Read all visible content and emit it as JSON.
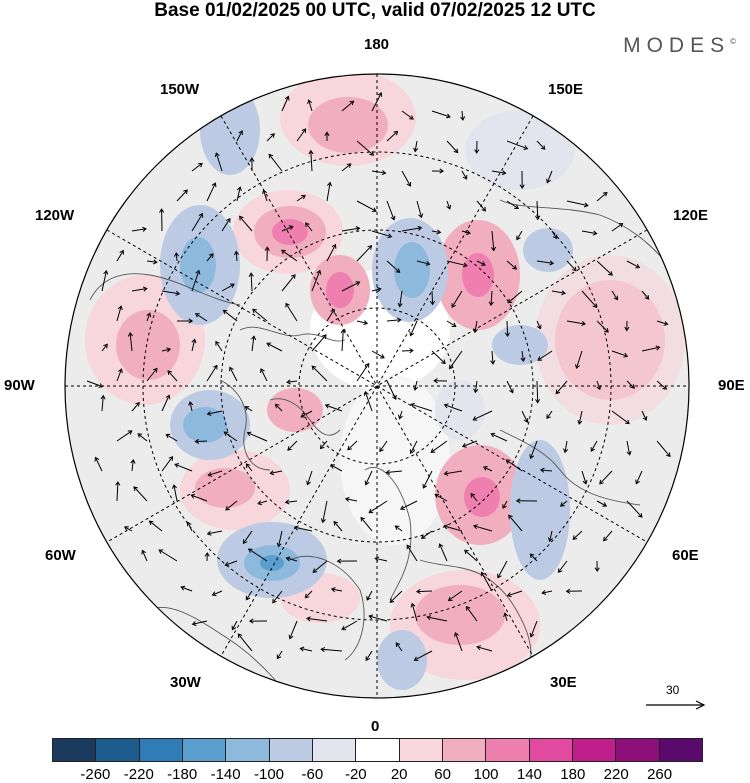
{
  "title": "Base 01/02/2025 00 UTC, valid 07/02/2025 12 UTC",
  "brand": "MODES",
  "brand_mark": "©",
  "longitudes": {
    "top": "180",
    "bottom": "0",
    "left": "90W",
    "right": "90E",
    "upper_left": "150W",
    "upper_right": "150E",
    "mid_left": "120W",
    "mid_right": "120E",
    "lower_left": "60W",
    "lower_right": "60E",
    "bottom_left": "30W",
    "bottom_right": "30E"
  },
  "reference_vector": {
    "label": "30"
  },
  "colorbar": {
    "colors": [
      "#1b3b5e",
      "#1f5c8e",
      "#2f7cb6",
      "#5b9fcf",
      "#8db9dd",
      "#bccbe3",
      "#e4e4ef",
      "#ffffff",
      "#f7d6dc",
      "#f1aebf",
      "#ef7fae",
      "#e24a9f",
      "#c01e8a",
      "#8d0f79",
      "#5a0a6c"
    ],
    "labels": [
      "-260",
      "-220",
      "-180",
      "-140",
      "-100",
      "-60",
      "-20",
      "20",
      "60",
      "100",
      "140",
      "180",
      "220",
      "260"
    ]
  }
}
